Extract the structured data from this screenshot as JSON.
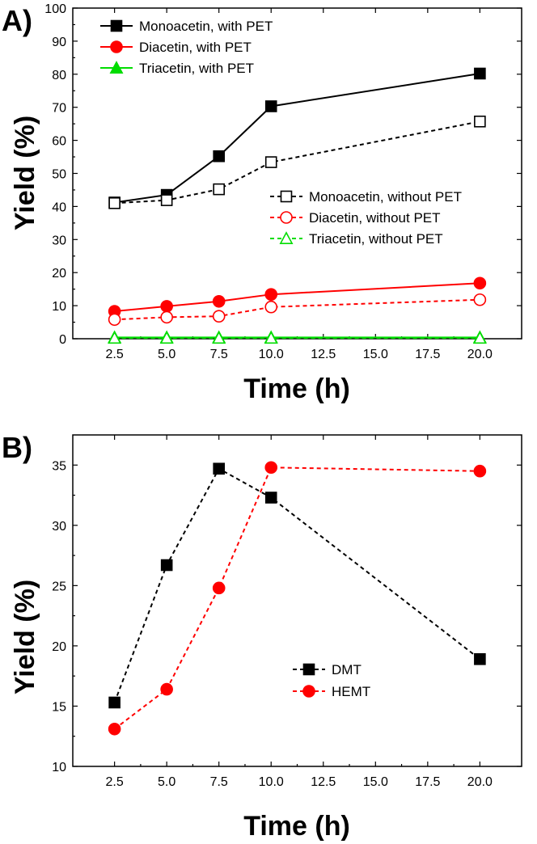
{
  "chart_data": [
    {
      "panel_label": "A)",
      "type": "line",
      "xlabel": "Time (h)",
      "ylabel": "Yield (%)",
      "x": [
        2.5,
        5.0,
        7.5,
        10.0,
        20.0
      ],
      "xlim": [
        0.5,
        22.0
      ],
      "ylim": [
        0,
        100
      ],
      "xticks": [
        "2.5",
        "5.0",
        "7.5",
        "10.0",
        "12.5",
        "15.0",
        "17.5",
        "20.0"
      ],
      "yticks": [
        "0",
        "10",
        "20",
        "30",
        "40",
        "50",
        "60",
        "70",
        "80",
        "90",
        "100"
      ],
      "series": [
        {
          "name": "Monoacetin, with PET",
          "values": [
            41.2,
            43.5,
            55.2,
            70.3,
            80.2
          ],
          "color": "#000000",
          "marker": "square",
          "filled": true,
          "dashed": false
        },
        {
          "name": "Diacetin, with PET",
          "values": [
            8.3,
            9.8,
            11.3,
            13.4,
            16.8
          ],
          "color": "#ff0000",
          "marker": "circle",
          "filled": true,
          "dashed": false
        },
        {
          "name": "Triacetin, with PET",
          "values": [
            0.4,
            0.4,
            0.4,
            0.4,
            0.4
          ],
          "color": "#00dd00",
          "marker": "triangle",
          "filled": true,
          "dashed": false
        },
        {
          "name": "Monoacetin, without PET",
          "values": [
            41.0,
            41.9,
            45.2,
            53.4,
            65.7
          ],
          "color": "#000000",
          "marker": "square",
          "filled": false,
          "dashed": true
        },
        {
          "name": "Diacetin, without PET",
          "values": [
            5.8,
            6.5,
            6.8,
            9.6,
            11.8
          ],
          "color": "#ff0000",
          "marker": "circle",
          "filled": false,
          "dashed": true
        },
        {
          "name": "Triacetin, without PET",
          "values": [
            0.2,
            0.2,
            0.2,
            0.2,
            0.2
          ],
          "color": "#00dd00",
          "marker": "triangle",
          "filled": false,
          "dashed": true
        }
      ]
    },
    {
      "panel_label": "B)",
      "type": "line",
      "xlabel": "Time (h)",
      "ylabel": "Yield (%)",
      "x": [
        2.5,
        5.0,
        7.5,
        10.0,
        20.0
      ],
      "xlim": [
        0.5,
        22.0
      ],
      "ylim": [
        10,
        37.5
      ],
      "xticks": [
        "2.5",
        "5.0",
        "7.5",
        "10.0",
        "12.5",
        "15.0",
        "17.5",
        "20.0"
      ],
      "yticks": [
        "10",
        "15",
        "20",
        "25",
        "30",
        "35"
      ],
      "series": [
        {
          "name": "DMT",
          "values": [
            15.3,
            26.7,
            34.7,
            32.3,
            18.9
          ],
          "color": "#000000",
          "marker": "square",
          "filled": true,
          "dashed": true
        },
        {
          "name": "HEMT",
          "values": [
            13.1,
            16.4,
            24.8,
            34.8,
            34.5
          ],
          "color": "#ff0000",
          "marker": "circle",
          "filled": true,
          "dashed": true
        }
      ]
    }
  ]
}
